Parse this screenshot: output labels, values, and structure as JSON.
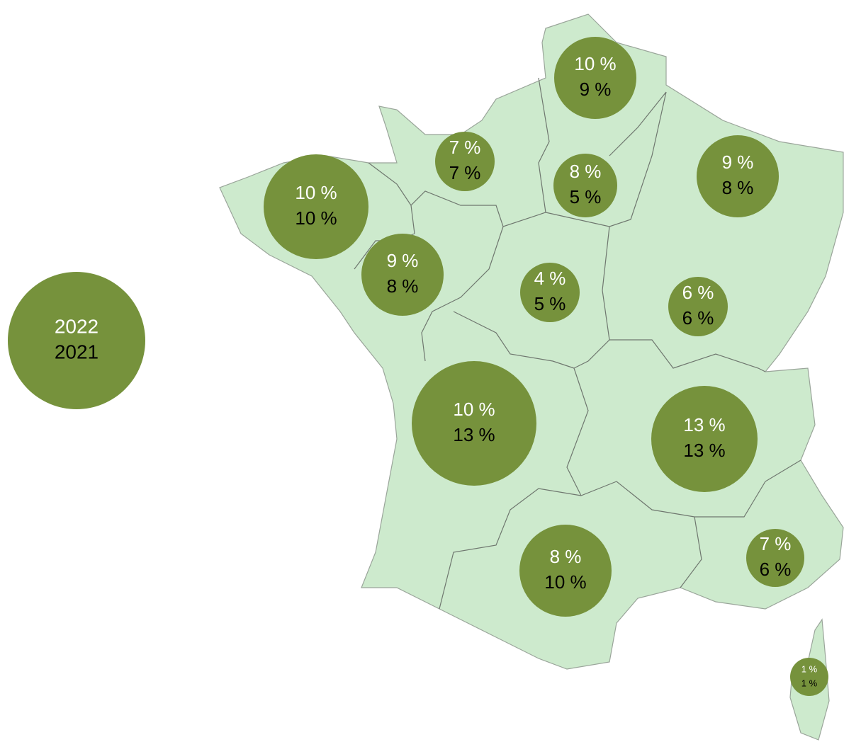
{
  "chart_data": {
    "type": "bubble-map",
    "bubble_color": "#76923c",
    "map_color": "#cdeacd",
    "series": [
      {
        "name": "2022",
        "color": "#ffffff",
        "values": [
          10,
          7,
          8,
          9,
          10,
          9,
          4,
          6,
          10,
          13,
          8,
          7,
          1
        ],
        "value_labels": [
          "10 %",
          "7 %",
          "8 %",
          "9 %",
          "10 %",
          "9 %",
          "4 %",
          "6 %",
          "10 %",
          "13 %",
          "8 %",
          "7 %",
          "1 %"
        ]
      },
      {
        "name": "2021",
        "color": "#000000",
        "values": [
          9,
          7,
          5,
          8,
          10,
          8,
          5,
          6,
          13,
          13,
          10,
          6,
          1
        ],
        "value_labels": [
          "9 %",
          "7 %",
          "5 %",
          "8 %",
          "10 %",
          "8 %",
          "5 %",
          "6 %",
          "13 %",
          "13 %",
          "10 %",
          "6 %",
          "1 %"
        ]
      }
    ]
  }
}
